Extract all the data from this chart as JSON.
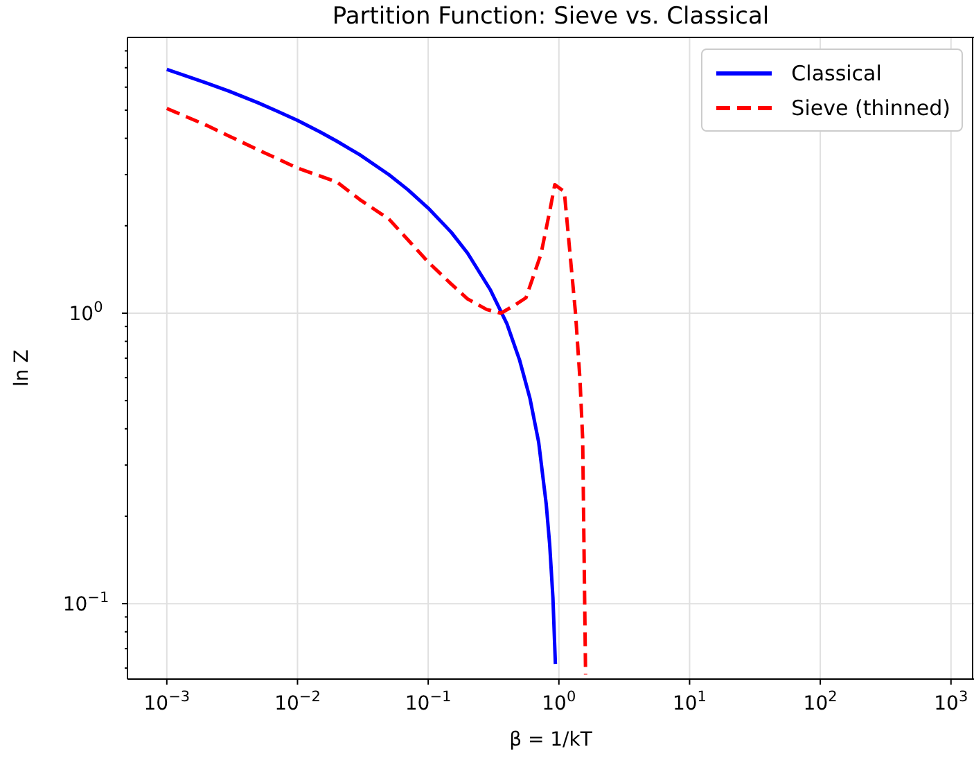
{
  "chart_data": {
    "type": "line",
    "title": "Partition Function: Sieve vs. Classical",
    "xlabel": "β = 1/kT",
    "ylabel": "ln Z",
    "log": "xy",
    "grid": true,
    "legend": "top right",
    "xlim": [
      0.0005,
      1500
    ],
    "xticks": [
      {
        "value": 0.001,
        "label": "10$^{−3}$"
      },
      {
        "value": 0.01,
        "label": "10$^{−2}$"
      },
      {
        "value": 0.1,
        "label": "10$^{−1}$"
      },
      {
        "value": 1,
        "label": "10$^{0}$"
      },
      {
        "value": 10,
        "label": "10$^{1}$"
      },
      {
        "value": 100,
        "label": "10$^{2}$"
      },
      {
        "value": 1000,
        "label": "10$^{3}$"
      }
    ],
    "ylim": [
      0.055,
      8.9
    ],
    "yticks": [
      {
        "value": 0.06,
        "label": null
      },
      {
        "value": 0.07,
        "label": null
      },
      {
        "value": 0.08,
        "label": null
      },
      {
        "value": 0.09,
        "label": null
      },
      {
        "value": 0.1,
        "label": "10$^{−1}$"
      },
      {
        "value": 0.2,
        "label": null
      },
      {
        "value": 0.3,
        "label": null
      },
      {
        "value": 0.4,
        "label": null
      },
      {
        "value": 0.5,
        "label": null
      },
      {
        "value": 0.6,
        "label": null
      },
      {
        "value": 0.7,
        "label": null
      },
      {
        "value": 0.8,
        "label": null
      },
      {
        "value": 0.9,
        "label": null
      },
      {
        "value": 1,
        "label": "10$^{0}$"
      },
      {
        "value": 2,
        "label": null
      },
      {
        "value": 3,
        "label": null
      },
      {
        "value": 4,
        "label": null
      },
      {
        "value": 5,
        "label": null
      },
      {
        "value": 6,
        "label": null
      },
      {
        "value": 7,
        "label": null
      },
      {
        "value": 8,
        "label": null
      }
    ],
    "series": [
      {
        "name": "Classical",
        "color": "#0000ff",
        "line_style": "solid",
        "x": [
          0.001,
          0.002,
          0.003,
          0.005,
          0.007,
          0.01,
          0.015,
          0.02,
          0.03,
          0.05,
          0.07,
          0.1,
          0.15,
          0.2,
          0.3,
          0.4,
          0.5,
          0.6,
          0.7,
          0.8,
          0.85,
          0.9,
          0.94
        ],
        "values": [
          6.91,
          6.21,
          5.81,
          5.3,
          4.96,
          4.61,
          4.2,
          3.91,
          3.51,
          3.0,
          2.66,
          2.3,
          1.9,
          1.61,
          1.2,
          0.92,
          0.69,
          0.51,
          0.36,
          0.22,
          0.16,
          0.105,
          0.062
        ]
      },
      {
        "name": "Sieve (thinned)",
        "color": "#ff0000",
        "line_style": "dashed",
        "x": [
          0.001,
          0.002,
          0.003,
          0.005,
          0.01,
          0.02,
          0.03,
          0.05,
          0.1,
          0.15,
          0.2,
          0.28,
          0.36,
          0.45,
          0.56,
          0.73,
          0.86,
          0.93,
          1.1,
          1.34,
          1.45,
          1.52,
          1.6
        ],
        "values": [
          5.07,
          4.44,
          4.07,
          3.65,
          3.16,
          2.83,
          2.46,
          2.11,
          1.5,
          1.26,
          1.12,
          1.03,
          1.0,
          1.06,
          1.13,
          1.6,
          2.3,
          2.77,
          2.62,
          1.0,
          0.59,
          0.37,
          0.057
        ]
      }
    ]
  }
}
